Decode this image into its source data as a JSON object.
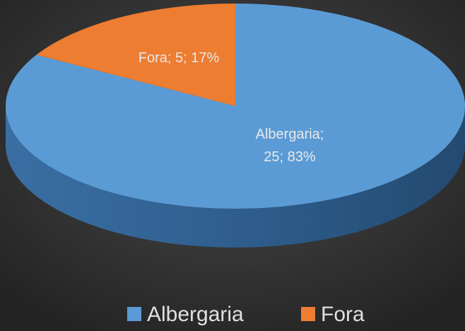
{
  "chart_data": {
    "type": "pie",
    "categories": [
      "Albergaria",
      "Fora"
    ],
    "values": [
      25,
      5
    ],
    "value_labels": [
      "Albergaria; 25; 83%",
      "Fora; 5; 17%"
    ],
    "colors": [
      "#5b9bd5",
      "#ed7d31"
    ],
    "legend": "bottom"
  }
}
